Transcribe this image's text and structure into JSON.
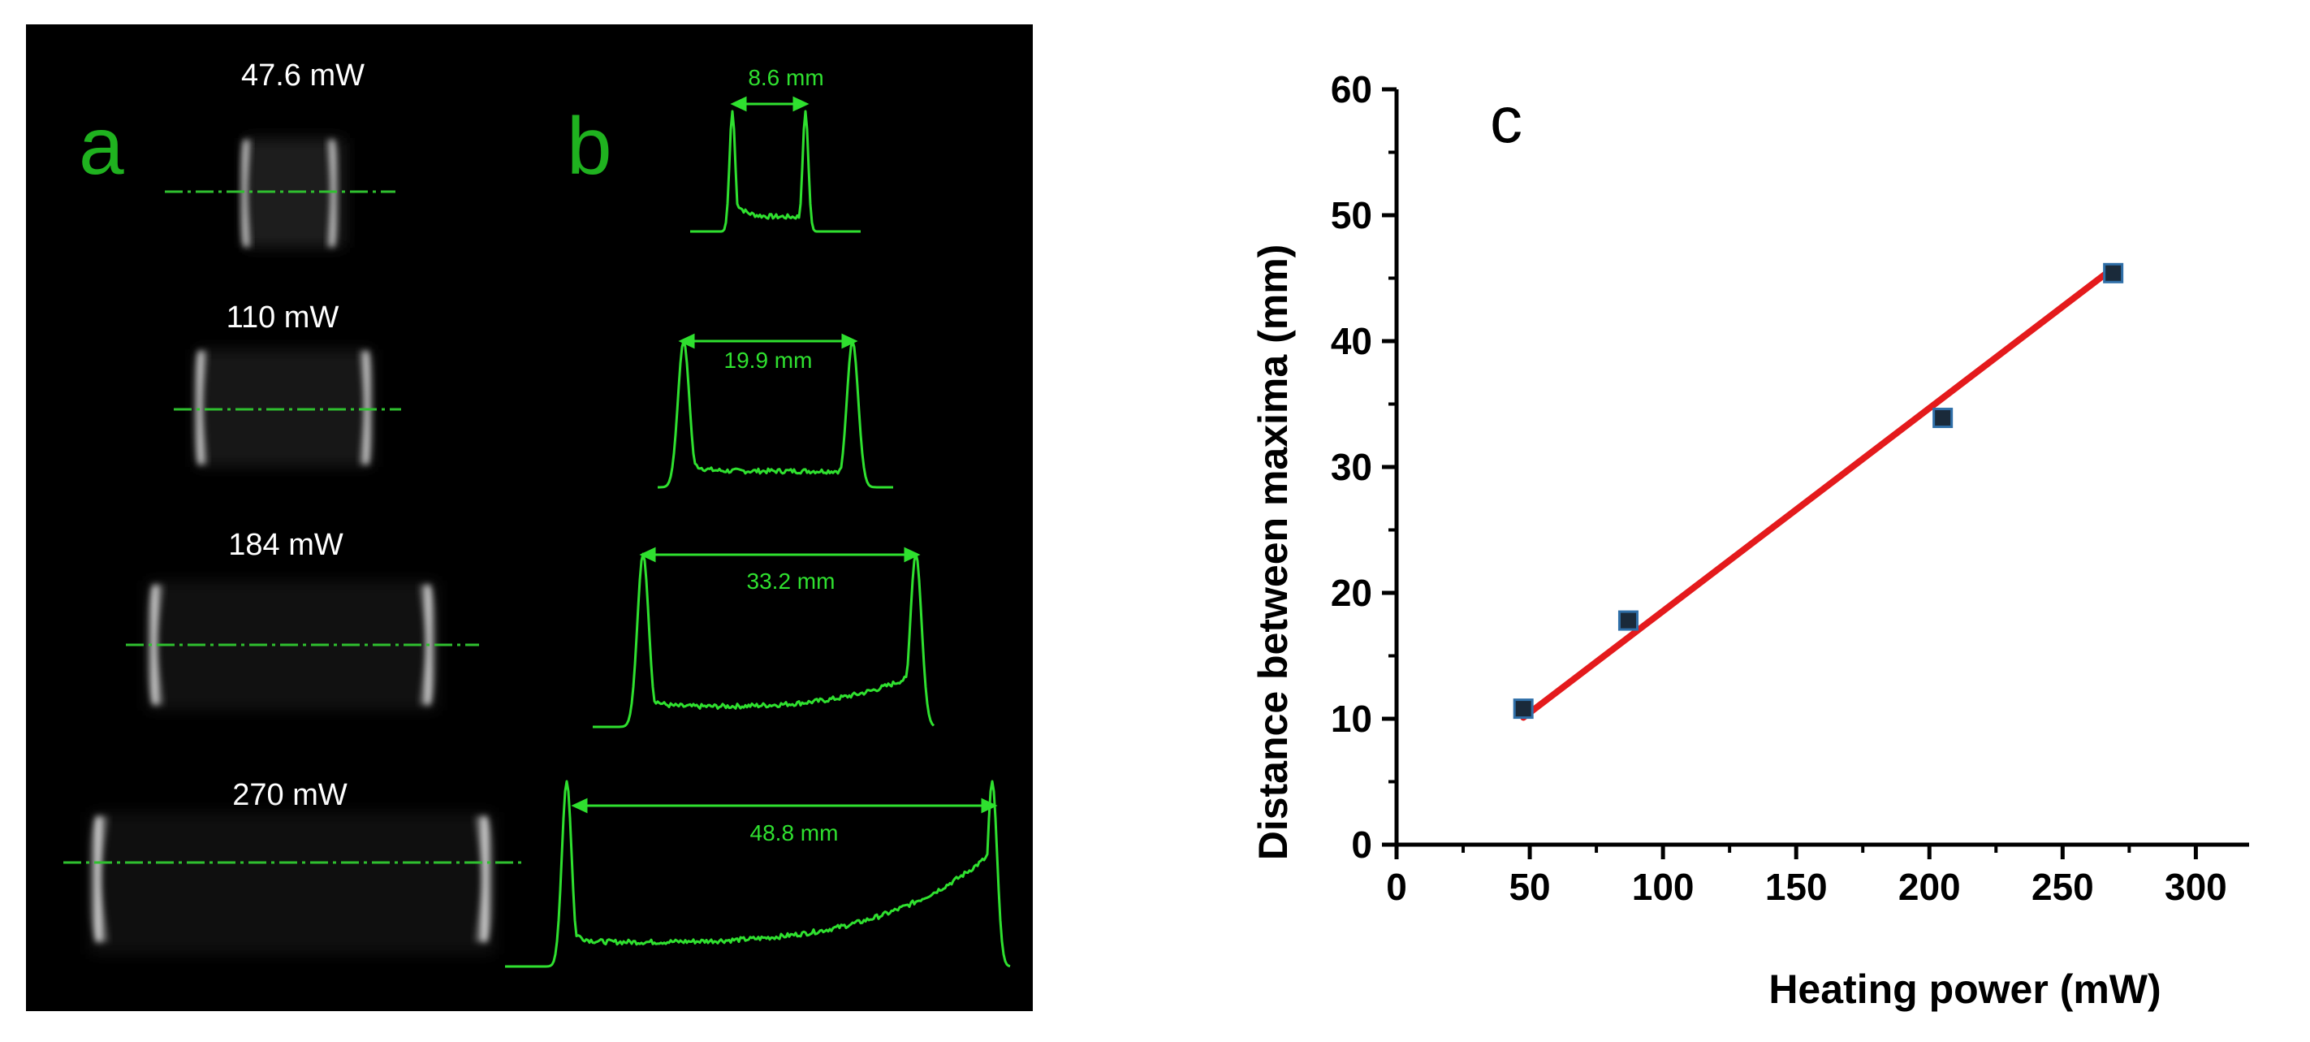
{
  "panel_a": {
    "letter": "a",
    "powers": [
      "47.6 mW",
      "110 mW",
      "184 mW",
      "270 mW"
    ]
  },
  "panel_b": {
    "letter": "b",
    "widths": [
      "8.6 mm",
      "19.9 mm",
      "33.2 mm",
      "48.8 mm"
    ]
  },
  "panel_c": {
    "letter": "c"
  },
  "colors": {
    "green_trace": "#2fe02f",
    "panel_letter_green": "#1fb21f",
    "fit_line": "#e41a1c",
    "marker": "#1a2a3a",
    "marker_edge": "#2f6fa8"
  },
  "chart_data": {
    "type": "scatter",
    "xlabel": "Heating power (mW)",
    "ylabel": "Distance between maxima (mm)",
    "xlim": [
      0,
      320
    ],
    "ylim": [
      0,
      60
    ],
    "xticks": [
      "0",
      "50",
      "100",
      "150",
      "200",
      "250",
      "300"
    ],
    "yticks": [
      "0",
      "10",
      "20",
      "30",
      "40",
      "50",
      "60"
    ],
    "grid": false,
    "series": [
      {
        "type": "scatter",
        "marker": "square",
        "x": [
          47.6,
          87,
          205,
          269
        ],
        "y": [
          10.8,
          17.8,
          33.9,
          45.4
        ]
      },
      {
        "type": "line",
        "x": [
          47.6,
          269
        ],
        "y": [
          10.1,
          45.8
        ]
      }
    ]
  }
}
